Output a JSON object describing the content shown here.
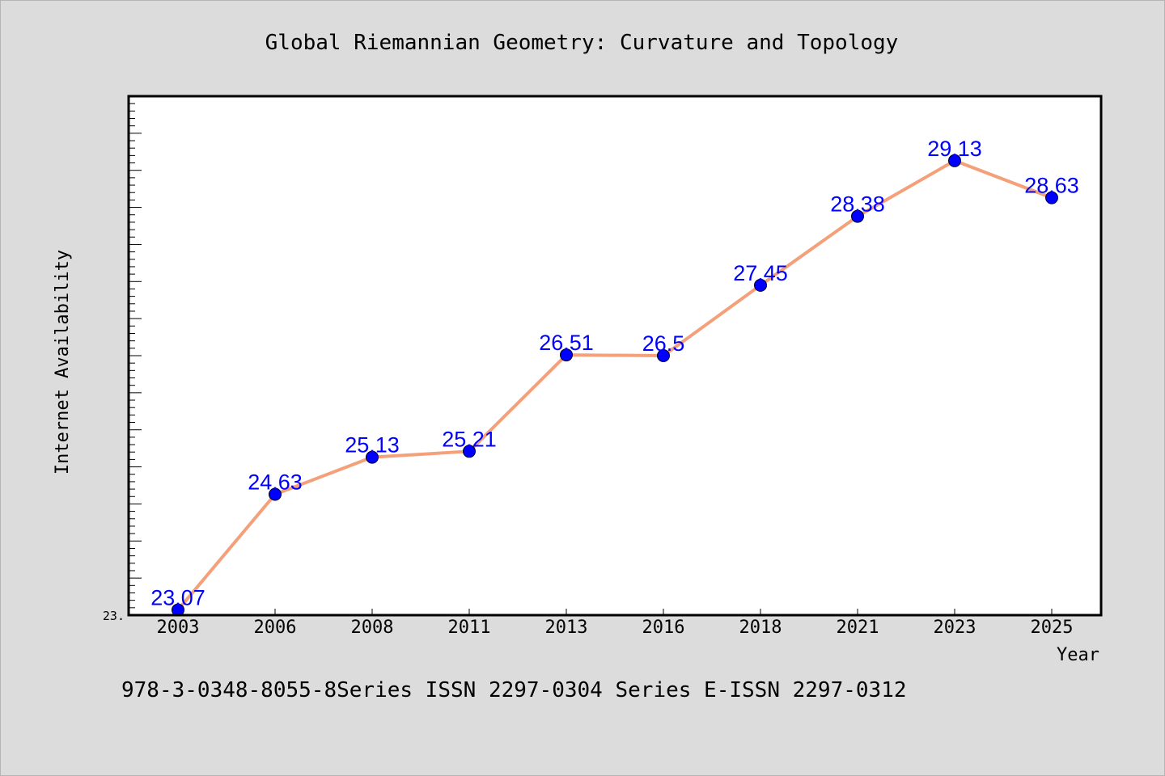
{
  "chart_data": {
    "type": "line",
    "title": "Global Riemannian Geometry: Curvature and Topology",
    "xlabel": "Year",
    "ylabel": "Internet Availability",
    "categories": [
      "2003",
      "2006",
      "2008",
      "2011",
      "2013",
      "2016",
      "2018",
      "2021",
      "2023",
      "2025"
    ],
    "series": [
      {
        "values": [
          23.07,
          24.63,
          25.13,
          25.21,
          26.51,
          26.5,
          27.45,
          28.38,
          29.13,
          28.63
        ],
        "labels": [
          "23.07",
          "24.63",
          "25.13",
          "25.21",
          "26.51",
          "26.5",
          "27.45",
          "28.38",
          "29.13",
          "28.63"
        ],
        "line_color": "#f4a07a",
        "marker_color": "#0000ff"
      }
    ],
    "ylim": [
      23.0,
      30.0
    ],
    "y_min_label": "23.",
    "grid": false,
    "plot_background": "#ffffff",
    "figure_background": "#dcdcdc"
  },
  "footer": {
    "text": "978-3-0348-8055-8Series ISSN 2297-0304 Series E-ISSN 2297-0312"
  }
}
